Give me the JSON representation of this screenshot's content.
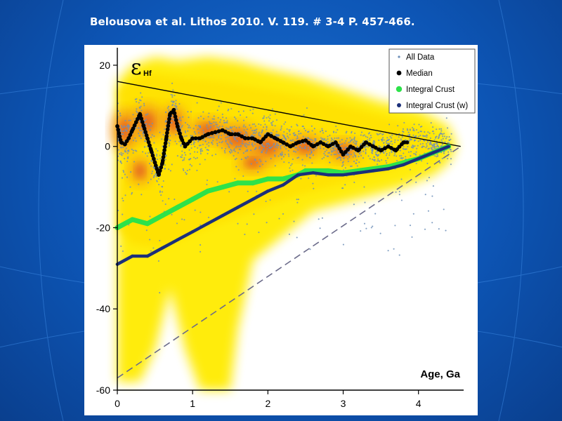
{
  "slide": {
    "citation": "Belousova et al. Lithos 2010. V. 119. # 3-4 P. 457-466."
  },
  "colors": {
    "background_blue": "#0d55b5",
    "density_yellow": "#ffeb00",
    "density_orange": "#f08a1c",
    "density_red": "#d9302a",
    "all_data": "#6d8fb8",
    "median": "#000000",
    "integral_crust": "#2ee24a",
    "integral_crust_w": "#1b2f7a"
  },
  "chart_data": {
    "type": "scatter",
    "ylabel_symbol": "ε",
    "ylabel_subscript": "Hf",
    "xlabel": "Age, Ga",
    "xlim": [
      0,
      4.6
    ],
    "ylim": [
      -60,
      25
    ],
    "x_ticks": [
      "0",
      "1",
      "2",
      "3",
      "4"
    ],
    "y_ticks": [
      "20",
      "0",
      "-20",
      "-40",
      "-60"
    ],
    "grid": false,
    "legend_position": "top-right",
    "legend": [
      "All Data",
      "Median",
      "Integral Crust",
      "Integral Crust (w)"
    ],
    "reference_lines": [
      {
        "style": "solid",
        "points": [
          [
            0,
            16
          ],
          [
            4.56,
            0
          ]
        ]
      },
      {
        "style": "dashed",
        "points": [
          [
            0,
            -57
          ],
          [
            4.56,
            0
          ]
        ]
      }
    ],
    "series": [
      {
        "name": "Median",
        "x": [
          0,
          0.05,
          0.1,
          0.15,
          0.2,
          0.25,
          0.3,
          0.35,
          0.4,
          0.45,
          0.5,
          0.55,
          0.6,
          0.65,
          0.7,
          0.75,
          0.8,
          0.85,
          0.9,
          1.0,
          1.1,
          1.2,
          1.3,
          1.4,
          1.5,
          1.6,
          1.7,
          1.8,
          1.9,
          2.0,
          2.1,
          2.2,
          2.3,
          2.4,
          2.5,
          2.6,
          2.7,
          2.8,
          2.9,
          3.0,
          3.1,
          3.2,
          3.3,
          3.4,
          3.5,
          3.6,
          3.7,
          3.8,
          3.85
        ],
        "values": [
          5,
          1,
          0.5,
          2,
          4,
          6,
          8,
          5,
          2,
          -1,
          -4,
          -7,
          -4,
          2,
          8,
          9,
          5,
          2,
          0,
          2,
          2,
          3,
          3.5,
          4,
          3,
          3,
          2,
          2,
          1,
          3,
          2,
          1,
          0,
          1,
          1.5,
          0,
          1,
          0,
          1,
          -2,
          0,
          -1,
          1,
          0,
          -1,
          0,
          -1,
          1,
          1
        ]
      },
      {
        "name": "Integral Crust",
        "x": [
          0,
          0.2,
          0.4,
          0.6,
          0.8,
          1.0,
          1.2,
          1.4,
          1.6,
          1.8,
          2.0,
          2.2,
          2.4,
          2.5,
          2.6,
          2.8,
          3.0,
          3.2,
          3.4,
          3.6,
          3.8,
          4.0,
          4.2,
          4.4
        ],
        "values": [
          -20,
          -18,
          -19,
          -17,
          -15,
          -13,
          -11,
          -10,
          -9,
          -9,
          -8,
          -8,
          -7,
          -6,
          -6,
          -6,
          -6.5,
          -6,
          -5.5,
          -5,
          -4,
          -3,
          -1.5,
          0
        ]
      },
      {
        "name": "Integral Crust (w)",
        "x": [
          0,
          0.2,
          0.4,
          0.6,
          0.8,
          1.0,
          1.2,
          1.4,
          1.6,
          1.8,
          2.0,
          2.2,
          2.4,
          2.6,
          2.8,
          3.0,
          3.2,
          3.4,
          3.6,
          3.8,
          4.0,
          4.2,
          4.4
        ],
        "values": [
          -29,
          -27,
          -27,
          -25,
          -23,
          -21,
          -19,
          -17,
          -15,
          -13,
          -11,
          -9.5,
          -7,
          -6.5,
          -7,
          -7,
          -6.5,
          -6,
          -5.5,
          -4.5,
          -3,
          -1.5,
          0
        ]
      }
    ]
  }
}
